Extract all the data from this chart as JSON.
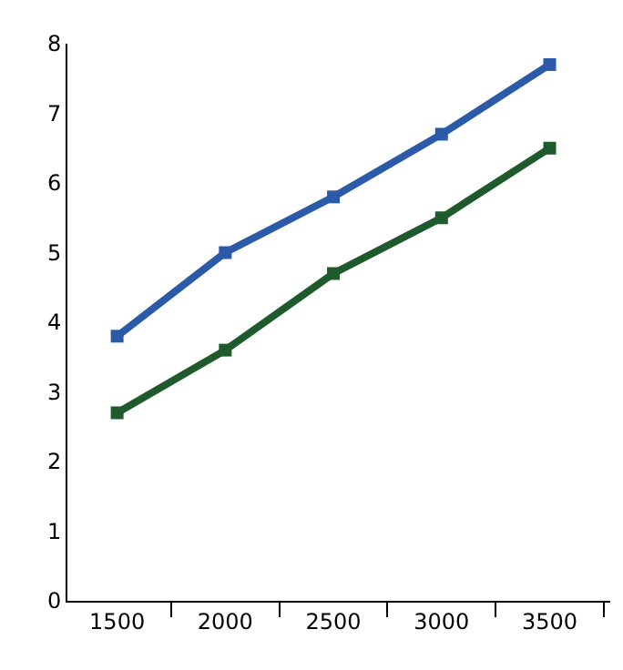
{
  "chart_data": {
    "type": "line",
    "x": [
      1500,
      2000,
      2500,
      3000,
      3500
    ],
    "series": [
      {
        "color": "#2b5ba8",
        "values": [
          3.8,
          5.0,
          5.8,
          6.7,
          7.7
        ]
      },
      {
        "color": "#1f5a2c",
        "values": [
          2.7,
          3.6,
          4.7,
          5.5,
          6.5
        ]
      }
    ],
    "xlim": [
      1270,
      3780
    ],
    "xticks": [
      1500,
      {
        "value": 1750,
        "label": null
      },
      2000,
      {
        "value": 2250,
        "label": null
      },
      2500,
      {
        "value": 2750,
        "label": null
      },
      3000,
      {
        "value": 3250,
        "label": null
      },
      3500,
      {
        "value": 3750,
        "label": null
      }
    ],
    "ylim": [
      0,
      8
    ],
    "yticks": [
      0,
      1,
      2,
      3,
      4,
      5,
      6,
      7,
      8
    ],
    "legend": false,
    "marker": "square",
    "line_style": "solid"
  }
}
